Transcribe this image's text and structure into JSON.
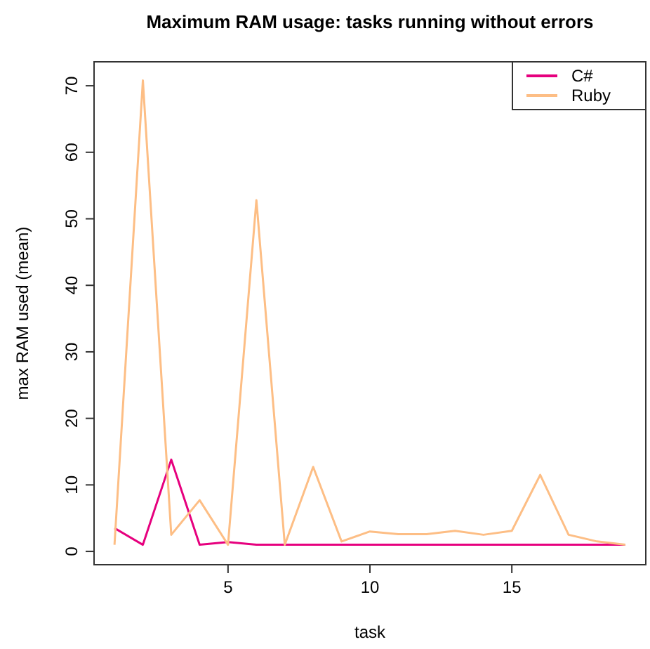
{
  "chart_data": {
    "type": "line",
    "title": "Maximum RAM usage: tasks running without errors",
    "xlabel": "task",
    "ylabel": "max RAM used (mean)",
    "x": [
      1,
      2,
      3,
      4,
      5,
      6,
      7,
      8,
      9,
      10,
      11,
      12,
      13,
      14,
      15,
      16,
      17,
      18,
      19
    ],
    "series": [
      {
        "name": "C#",
        "color": "#e6007e",
        "values": [
          3.5,
          1.0,
          13.8,
          1.0,
          1.4,
          1.0,
          1.0,
          1.0,
          1.0,
          1.0,
          1.0,
          1.0,
          1.0,
          1.0,
          1.0,
          1.0,
          1.0,
          1.0,
          1.0
        ]
      },
      {
        "name": "Ruby",
        "color": "#fdbe85",
        "values": [
          1.0,
          70.8,
          2.5,
          7.7,
          1.0,
          52.8,
          1.0,
          12.7,
          1.5,
          3.0,
          2.6,
          2.6,
          3.1,
          2.5,
          3.1,
          11.5,
          2.5,
          1.5,
          1.0
        ]
      }
    ],
    "xlim": [
      0.28,
      19.72
    ],
    "xticks": [
      5,
      10,
      15
    ],
    "ylim": [
      -2,
      73.6
    ],
    "yticks": [
      0,
      10,
      20,
      30,
      40,
      50,
      60,
      70
    ],
    "grid": false,
    "legend": "top right",
    "marker": "none",
    "line_style": "solid"
  }
}
